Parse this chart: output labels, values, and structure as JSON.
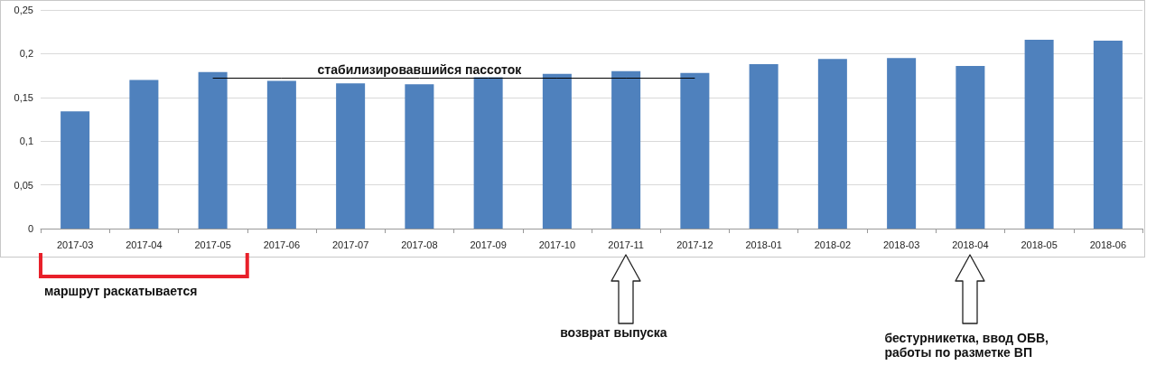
{
  "chart_data": {
    "type": "bar",
    "categories": [
      "2017-03",
      "2017-04",
      "2017-05",
      "2017-06",
      "2017-07",
      "2017-08",
      "2017-09",
      "2017-10",
      "2017-11",
      "2017-12",
      "2018-01",
      "2018-02",
      "2018-03",
      "2018-04",
      "2018-05",
      "2018-06"
    ],
    "series": [
      {
        "color": "#4f81bd",
        "values": [
          0.134,
          0.17,
          0.179,
          0.169,
          0.166,
          0.165,
          0.173,
          0.177,
          0.18,
          0.178,
          0.188,
          0.194,
          0.195,
          0.186,
          0.216,
          0.215
        ]
      },
      {
        "type": "line",
        "name": "стабилизировавшийся пассоток",
        "color": "#000000",
        "values": [
          null,
          null,
          0.172,
          0.172,
          0.172,
          0.172,
          0.172,
          0.172,
          0.172,
          0.172,
          null,
          null,
          null,
          null,
          null,
          null
        ]
      }
    ],
    "ylim": [
      0,
      0.25
    ],
    "yticks": [
      0,
      {
        "value": 0.05,
        "label": "0,05"
      },
      {
        "value": 0.1,
        "label": "0,1"
      },
      {
        "value": 0.15,
        "label": "0,15"
      },
      {
        "value": 0.2,
        "label": "0,2"
      },
      {
        "value": 0.25,
        "label": "0,25"
      }
    ],
    "grid": "y",
    "annotations": [
      "маршрут раскатывается",
      "возврат выпуска",
      "бестурникетка, ввод ОБВ, работы по разметке ВП"
    ]
  }
}
